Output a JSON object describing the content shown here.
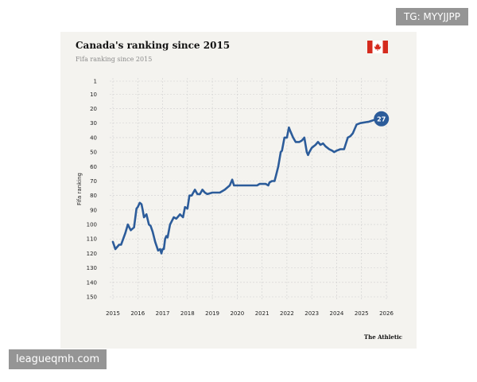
{
  "watermarks": {
    "top_right": "TG: MYYJJPP",
    "bottom_left": "leagueqmh.com"
  },
  "chart_data": {
    "type": "line",
    "title": "Canada's ranking since 2015",
    "subtitle": "Fifa ranking since 2015",
    "ylabel": "Fifa ranking",
    "xlabel": "",
    "brand": "The Athletic",
    "y_inverted": true,
    "ylim": [
      1,
      150
    ],
    "xlim": [
      2015,
      2026
    ],
    "y_ticks": [
      1,
      10,
      20,
      30,
      40,
      50,
      60,
      70,
      80,
      90,
      100,
      110,
      120,
      130,
      140,
      150
    ],
    "x_ticks": [
      2015,
      2016,
      2017,
      2018,
      2019,
      2020,
      2021,
      2022,
      2023,
      2024,
      2025,
      2026
    ],
    "grid": true,
    "line_color": "#2c5c9a",
    "flag": "canada-flag",
    "end_label": "27",
    "series": [
      {
        "x": [
          2015.0,
          2015.1,
          2015.25,
          2015.33,
          2015.5,
          2015.6,
          2015.72,
          2015.85,
          2015.95,
          2016.0,
          2016.08,
          2016.15,
          2016.2,
          2016.25,
          2016.35,
          2016.45,
          2016.52,
          2016.6,
          2016.7,
          2016.82,
          2016.9,
          2016.95,
          2017.0,
          2017.05,
          2017.1,
          2017.15,
          2017.2,
          2017.3,
          2017.45,
          2017.55,
          2017.6,
          2017.7,
          2017.82,
          2017.9,
          2018.0,
          2018.08,
          2018.12,
          2018.17,
          2018.2,
          2018.3,
          2018.4,
          2018.5,
          2018.6,
          2018.7,
          2018.8,
          2019.0,
          2019.15,
          2019.3,
          2019.5,
          2019.7,
          2019.8,
          2019.87,
          2019.92,
          2020.0,
          2020.5,
          2020.8,
          2020.9,
          2021.0,
          2021.15,
          2021.25,
          2021.3,
          2021.4,
          2021.5,
          2021.55,
          2021.65,
          2021.75,
          2021.8,
          2021.9,
          2022.0,
          2022.08,
          2022.15,
          2022.25,
          2022.35,
          2022.5,
          2022.6,
          2022.7,
          2022.8,
          2022.85,
          2022.9,
          2023.0,
          2023.15,
          2023.25,
          2023.35,
          2023.45,
          2023.55,
          2023.7,
          2023.82,
          2023.9,
          2024.0,
          2024.15,
          2024.3,
          2024.45,
          2024.55,
          2024.65,
          2024.8,
          2024.95,
          2025.3,
          2025.65,
          2025.8
        ],
        "y": [
          112,
          117,
          114,
          114,
          106,
          100,
          104,
          102,
          89,
          88,
          85,
          86,
          90,
          95,
          93,
          100,
          101,
          105,
          112,
          118,
          117,
          120,
          117,
          117,
          110,
          108,
          109,
          100,
          95,
          96,
          95,
          93,
          95,
          88,
          89,
          80,
          80,
          80,
          79,
          76,
          79,
          79,
          76,
          78,
          79,
          78,
          78,
          78,
          76,
          73,
          69,
          73,
          73,
          73,
          73,
          73,
          72,
          72,
          72,
          73,
          71,
          70,
          70,
          67,
          60,
          50,
          49,
          40,
          40,
          33,
          36,
          40,
          43,
          43,
          42,
          40,
          50,
          52,
          50,
          47,
          45,
          43,
          45,
          44,
          46,
          48,
          49,
          50,
          49,
          48,
          48,
          40,
          39,
          37,
          31,
          30,
          29,
          27,
          27
        ]
      }
    ]
  }
}
